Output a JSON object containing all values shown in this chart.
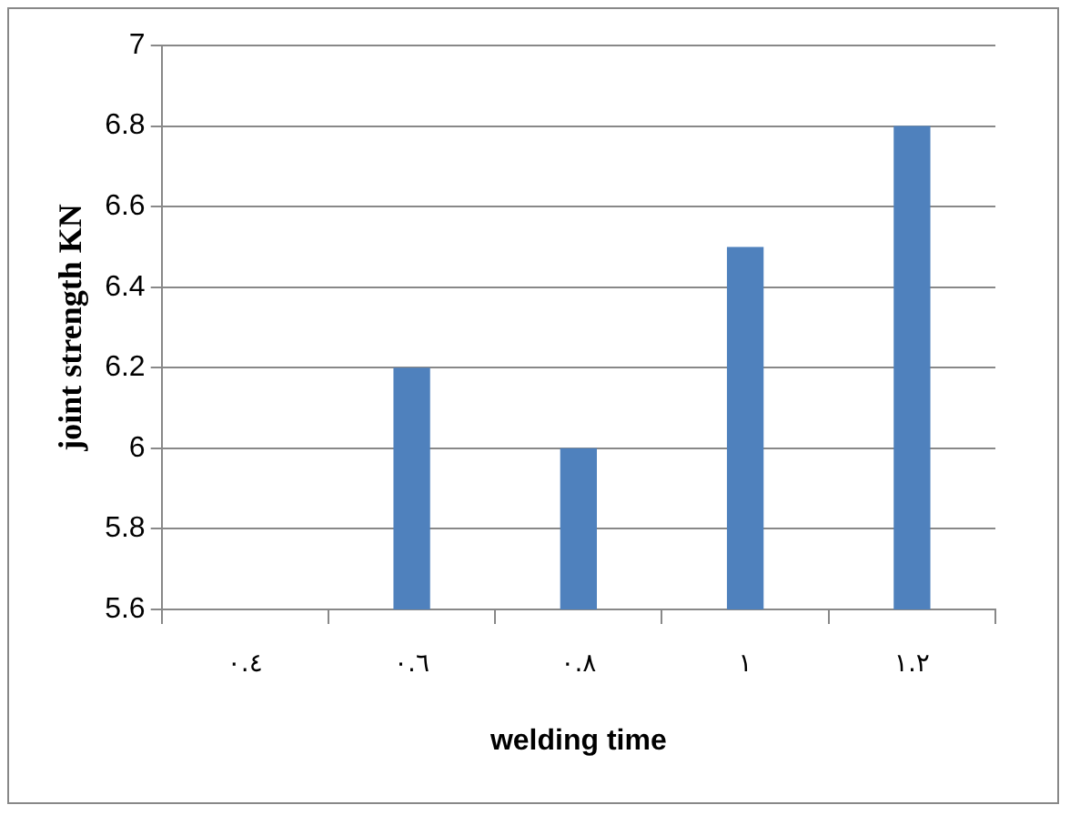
{
  "chart_data": {
    "type": "bar",
    "xlabel": "welding time",
    "ylabel": "joint strength KN",
    "categories": [
      "٠.٤",
      "٠.٦",
      "٠.٨",
      "١",
      "١.٢"
    ],
    "values": [
      null,
      6.2,
      6,
      6.5,
      6.8
    ],
    "color": "#4f81bd",
    "ylim": [
      5.6,
      7
    ],
    "yticks": [
      5.6,
      5.8,
      6,
      6.2,
      6.4,
      6.6,
      6.8,
      7
    ],
    "grid": "y"
  }
}
